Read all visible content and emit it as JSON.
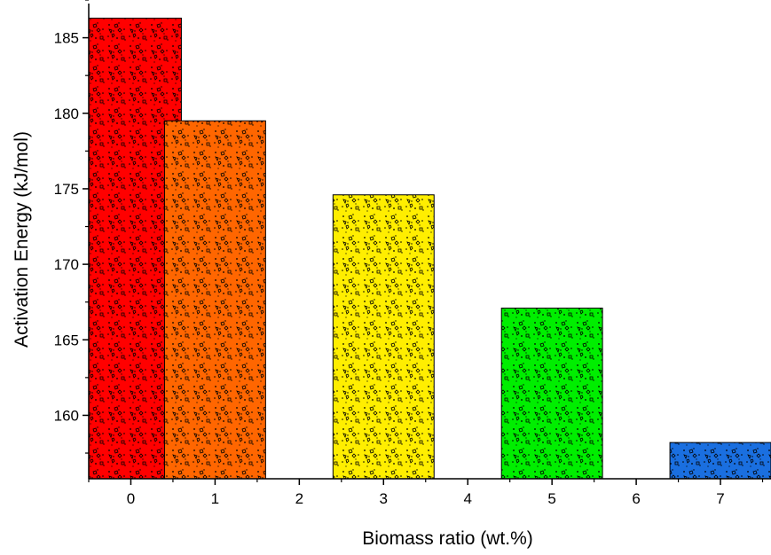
{
  "chart_data": {
    "type": "bar",
    "title": "",
    "xlabel": "Biomass ratio (wt.%)",
    "ylabel": "Activation Energy (kJ/mol)",
    "x": [
      0,
      1,
      3,
      5,
      7
    ],
    "values": [
      186.3,
      179.5,
      174.6,
      167.1,
      158.2
    ],
    "bar_width": 1.2,
    "colors": [
      "#ff0000",
      "#ff6600",
      "#ffee00",
      "#00ee00",
      "#1a6fe0"
    ],
    "pattern": "dotted-speckle",
    "xlim": [
      -0.5,
      7.6
    ],
    "ylim": [
      155.8,
      187.5
    ],
    "xticks": [
      0,
      1,
      2,
      3,
      4,
      5,
      6,
      7
    ],
    "xtick_labels": [
      "0",
      "1",
      "2",
      "3",
      "4",
      "5",
      "6",
      "7"
    ],
    "yticks": [
      160,
      165,
      170,
      175,
      180,
      185
    ],
    "ytick_labels": [
      "160",
      "165",
      "170",
      "175",
      "180",
      "185"
    ],
    "grid": false,
    "legend": "none"
  }
}
